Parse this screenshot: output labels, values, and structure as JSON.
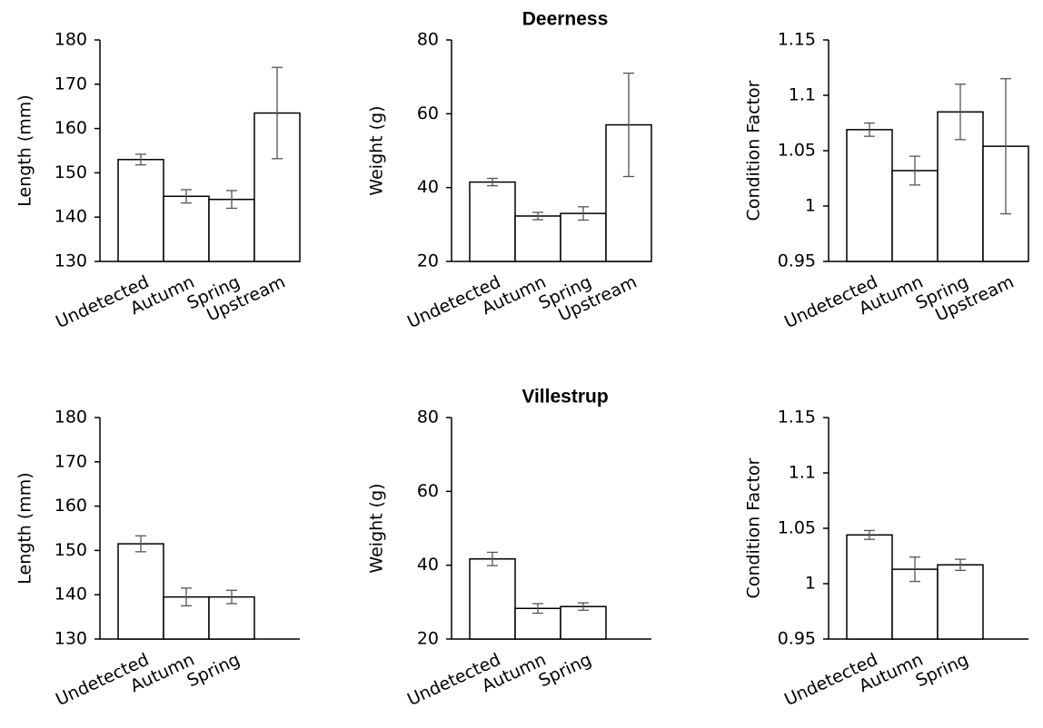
{
  "chart_data": [
    {
      "type": "bar",
      "ylabel": "Length (mm)",
      "categories": [
        "Undetected",
        "Autumn",
        "Spring",
        "Upstream"
      ],
      "values": [
        153,
        144.7,
        144,
        163.5
      ],
      "errors": [
        1.2,
        1.5,
        2,
        10.3
      ],
      "color": "#ffffff",
      "ylim": [
        130,
        180
      ],
      "yticks": [
        130,
        140,
        150,
        160,
        170,
        180
      ]
    },
    {
      "type": "bar",
      "title": "Deerness",
      "ylabel": "Weight (g)",
      "categories": [
        "Undetected",
        "Autumn",
        "Spring",
        "Upstream"
      ],
      "values": [
        41.5,
        32.3,
        33,
        57
      ],
      "errors": [
        1,
        1,
        1.8,
        14
      ],
      "color": "#ffffff",
      "ylim": [
        20,
        80
      ],
      "yticks": [
        20,
        40,
        60,
        80
      ]
    },
    {
      "type": "bar",
      "ylabel": "Condition Factor",
      "categories": [
        "Undetected",
        "Autumn",
        "Spring",
        "Upstream"
      ],
      "values": [
        1.069,
        1.032,
        1.085,
        1.054
      ],
      "errors": [
        0.006,
        0.013,
        0.025,
        0.061
      ],
      "color": "#ffffff",
      "ylim": [
        0.95,
        1.15
      ],
      "yticks": [
        0.95,
        1,
        1.05,
        1.1,
        1.15
      ]
    },
    {
      "type": "bar",
      "ylabel": "Length (mm)",
      "categories": [
        "Undetected",
        "Autumn",
        "Spring"
      ],
      "values": [
        151.5,
        139.5,
        139.5
      ],
      "errors": [
        1.8,
        2,
        1.5
      ],
      "color": "#ffffff",
      "ylim": [
        130,
        180
      ],
      "yticks": [
        130,
        140,
        150,
        160,
        170,
        180
      ]
    },
    {
      "type": "bar",
      "title": "Villestrup",
      "ylabel": "Weight (g)",
      "categories": [
        "Undetected",
        "Autumn",
        "Spring"
      ],
      "values": [
        41.7,
        28.3,
        28.8
      ],
      "errors": [
        1.8,
        1.3,
        1
      ],
      "color": "#ffffff",
      "ylim": [
        20,
        80
      ],
      "yticks": [
        20,
        40,
        60,
        80
      ]
    },
    {
      "type": "bar",
      "ylabel": "Condition Factor",
      "categories": [
        "Undetected",
        "Autumn",
        "Spring"
      ],
      "values": [
        1.044,
        1.013,
        1.017
      ],
      "errors": [
        0.004,
        0.011,
        0.005
      ],
      "color": "#ffffff",
      "ylim": [
        0.95,
        1.15
      ],
      "yticks": [
        0.95,
        1,
        1.05,
        1.1,
        1.15
      ]
    }
  ]
}
